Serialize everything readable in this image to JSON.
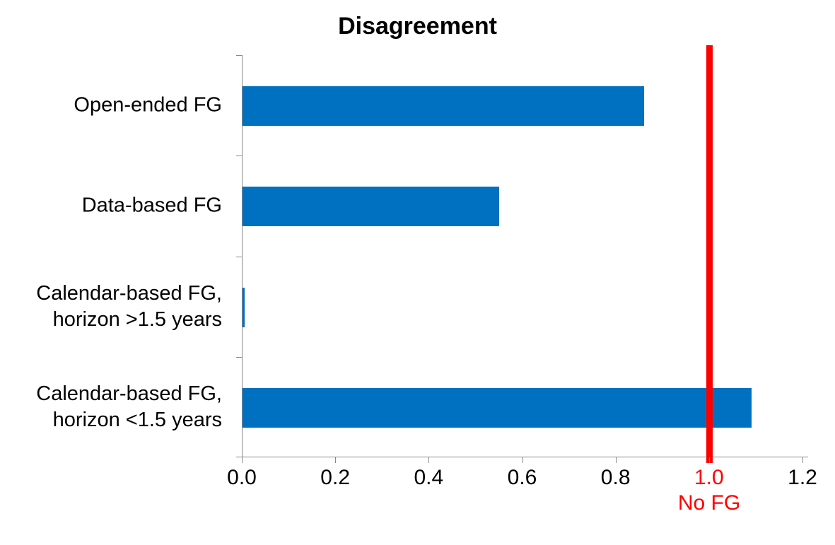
{
  "chart_data": {
    "type": "bar",
    "orientation": "horizontal",
    "title": "Disagreement",
    "categories": [
      "Open-ended FG",
      "Data-based FG",
      "Calendar-based FG,\nhorizon >1.5 years",
      "Calendar-based FG,\nhorizon <1.5 years"
    ],
    "values": [
      0.86,
      0.55,
      0.005,
      1.09
    ],
    "xlabel": "",
    "ylabel": "",
    "xlim": [
      0,
      1.2
    ],
    "x_tick_labels": [
      "0.0",
      "0.2",
      "0.4",
      "0.6",
      "0.8",
      "1.0",
      "1.2"
    ],
    "grid": false,
    "legend": false,
    "bar_color": "#0070C0",
    "axis_color": "#898989",
    "text_color": "#000000",
    "reference_line": {
      "value": 1.0,
      "label": "No FG",
      "color": "#FF0000",
      "highlighted_tick_label": "1.0"
    }
  }
}
